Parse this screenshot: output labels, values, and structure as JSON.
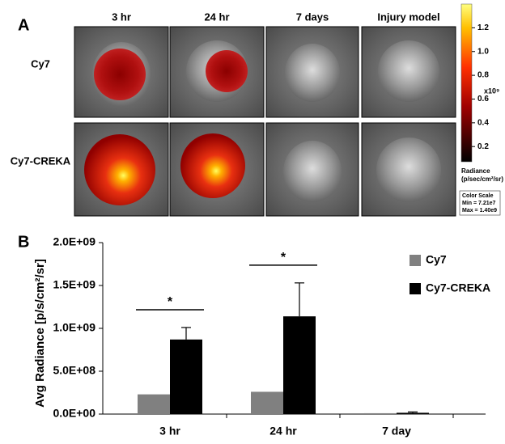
{
  "panel_a": {
    "label": "A",
    "columns": [
      "3 hr",
      "24 hr",
      "7 days",
      "Injury model"
    ],
    "rows": [
      "Cy7",
      "Cy7-CREKA"
    ],
    "colorbar": {
      "lim": [
        0.0721,
        1.4
      ],
      "ticks": [
        {
          "value": 1.2,
          "label": "1.2"
        },
        {
          "value": 1,
          "label": "1.0"
        },
        {
          "value": 0.8,
          "label": "0.8"
        },
        {
          "value": 0.6,
          "label": "0.6"
        },
        {
          "value": 0.4,
          "label": "0.4"
        },
        {
          "value": 0.2,
          "label": "0.2"
        }
      ],
      "multiplier": "x10⁹",
      "title": "Radiance",
      "unit": "(p/sec/cm²/sr)",
      "box_title": "Color Scale",
      "min_label": "Min = 7.21e7",
      "max_label": "Max = 1.40e9"
    }
  },
  "chart_data": {
    "type": "bar",
    "panel_label": "B",
    "y_label": "Avg Radiance [p/s/cm²/sr]",
    "categories": [
      "3 hr",
      "24 hr",
      "7 day"
    ],
    "series": [
      {
        "name": "Cy7",
        "color": "#808080",
        "values": [
          230000000,
          260000000,
          10000000
        ]
      },
      {
        "name": "Cy7-CREKA",
        "color": "#000000",
        "values": [
          870000000,
          1140000000,
          15000000
        ],
        "errors": [
          140000000,
          390000000,
          10000000
        ]
      }
    ],
    "ylim": [
      0,
      2000000000
    ],
    "yticks": [
      {
        "value": 0,
        "label": "0.0E+00"
      },
      {
        "value": 500000000,
        "label": "5.0E+08"
      },
      {
        "value": 1000000000,
        "label": "1.0E+09"
      },
      {
        "value": 1500000000,
        "label": "1.5E+09"
      },
      {
        "value": 2000000000,
        "label": "2.0E+09"
      }
    ],
    "annotations": [
      "*",
      "*"
    ]
  }
}
